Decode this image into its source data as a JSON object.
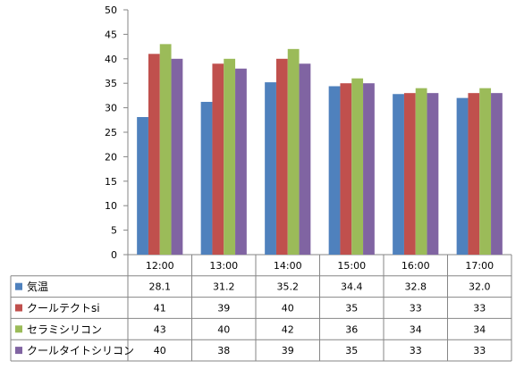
{
  "chart_data": {
    "type": "bar",
    "categories": [
      "12:00",
      "13:00",
      "14:00",
      "15:00",
      "16:00",
      "17:00"
    ],
    "ylim": [
      0,
      50
    ],
    "yticks": [
      0,
      5,
      10,
      15,
      20,
      25,
      30,
      35,
      40,
      45,
      50
    ],
    "title": "",
    "xlabel": "",
    "ylabel": "",
    "grid": "horizontal-none",
    "legend": "data-table-left",
    "series": [
      {
        "name": "気温",
        "color": "#4f81bd",
        "values": [
          28.1,
          31.2,
          35.2,
          34.4,
          32.8,
          32.0
        ],
        "labels": [
          "28.1",
          "31.2",
          "35.2",
          "34.4",
          "32.8",
          "32.0"
        ]
      },
      {
        "name": "クールテクトsi",
        "color": "#c0504d",
        "values": [
          41,
          39,
          40,
          35,
          33,
          33
        ],
        "labels": [
          "41",
          "39",
          "40",
          "35",
          "33",
          "33"
        ]
      },
      {
        "name": "セラミシリコン",
        "color": "#9bbb59",
        "values": [
          43,
          40,
          42,
          36,
          34,
          34
        ],
        "labels": [
          "43",
          "40",
          "42",
          "36",
          "34",
          "34"
        ]
      },
      {
        "name": "クールタイトシリコン",
        "color": "#8064a2",
        "values": [
          40,
          38,
          39,
          35,
          33,
          33
        ],
        "labels": [
          "40",
          "38",
          "39",
          "35",
          "33",
          "33"
        ]
      }
    ]
  }
}
